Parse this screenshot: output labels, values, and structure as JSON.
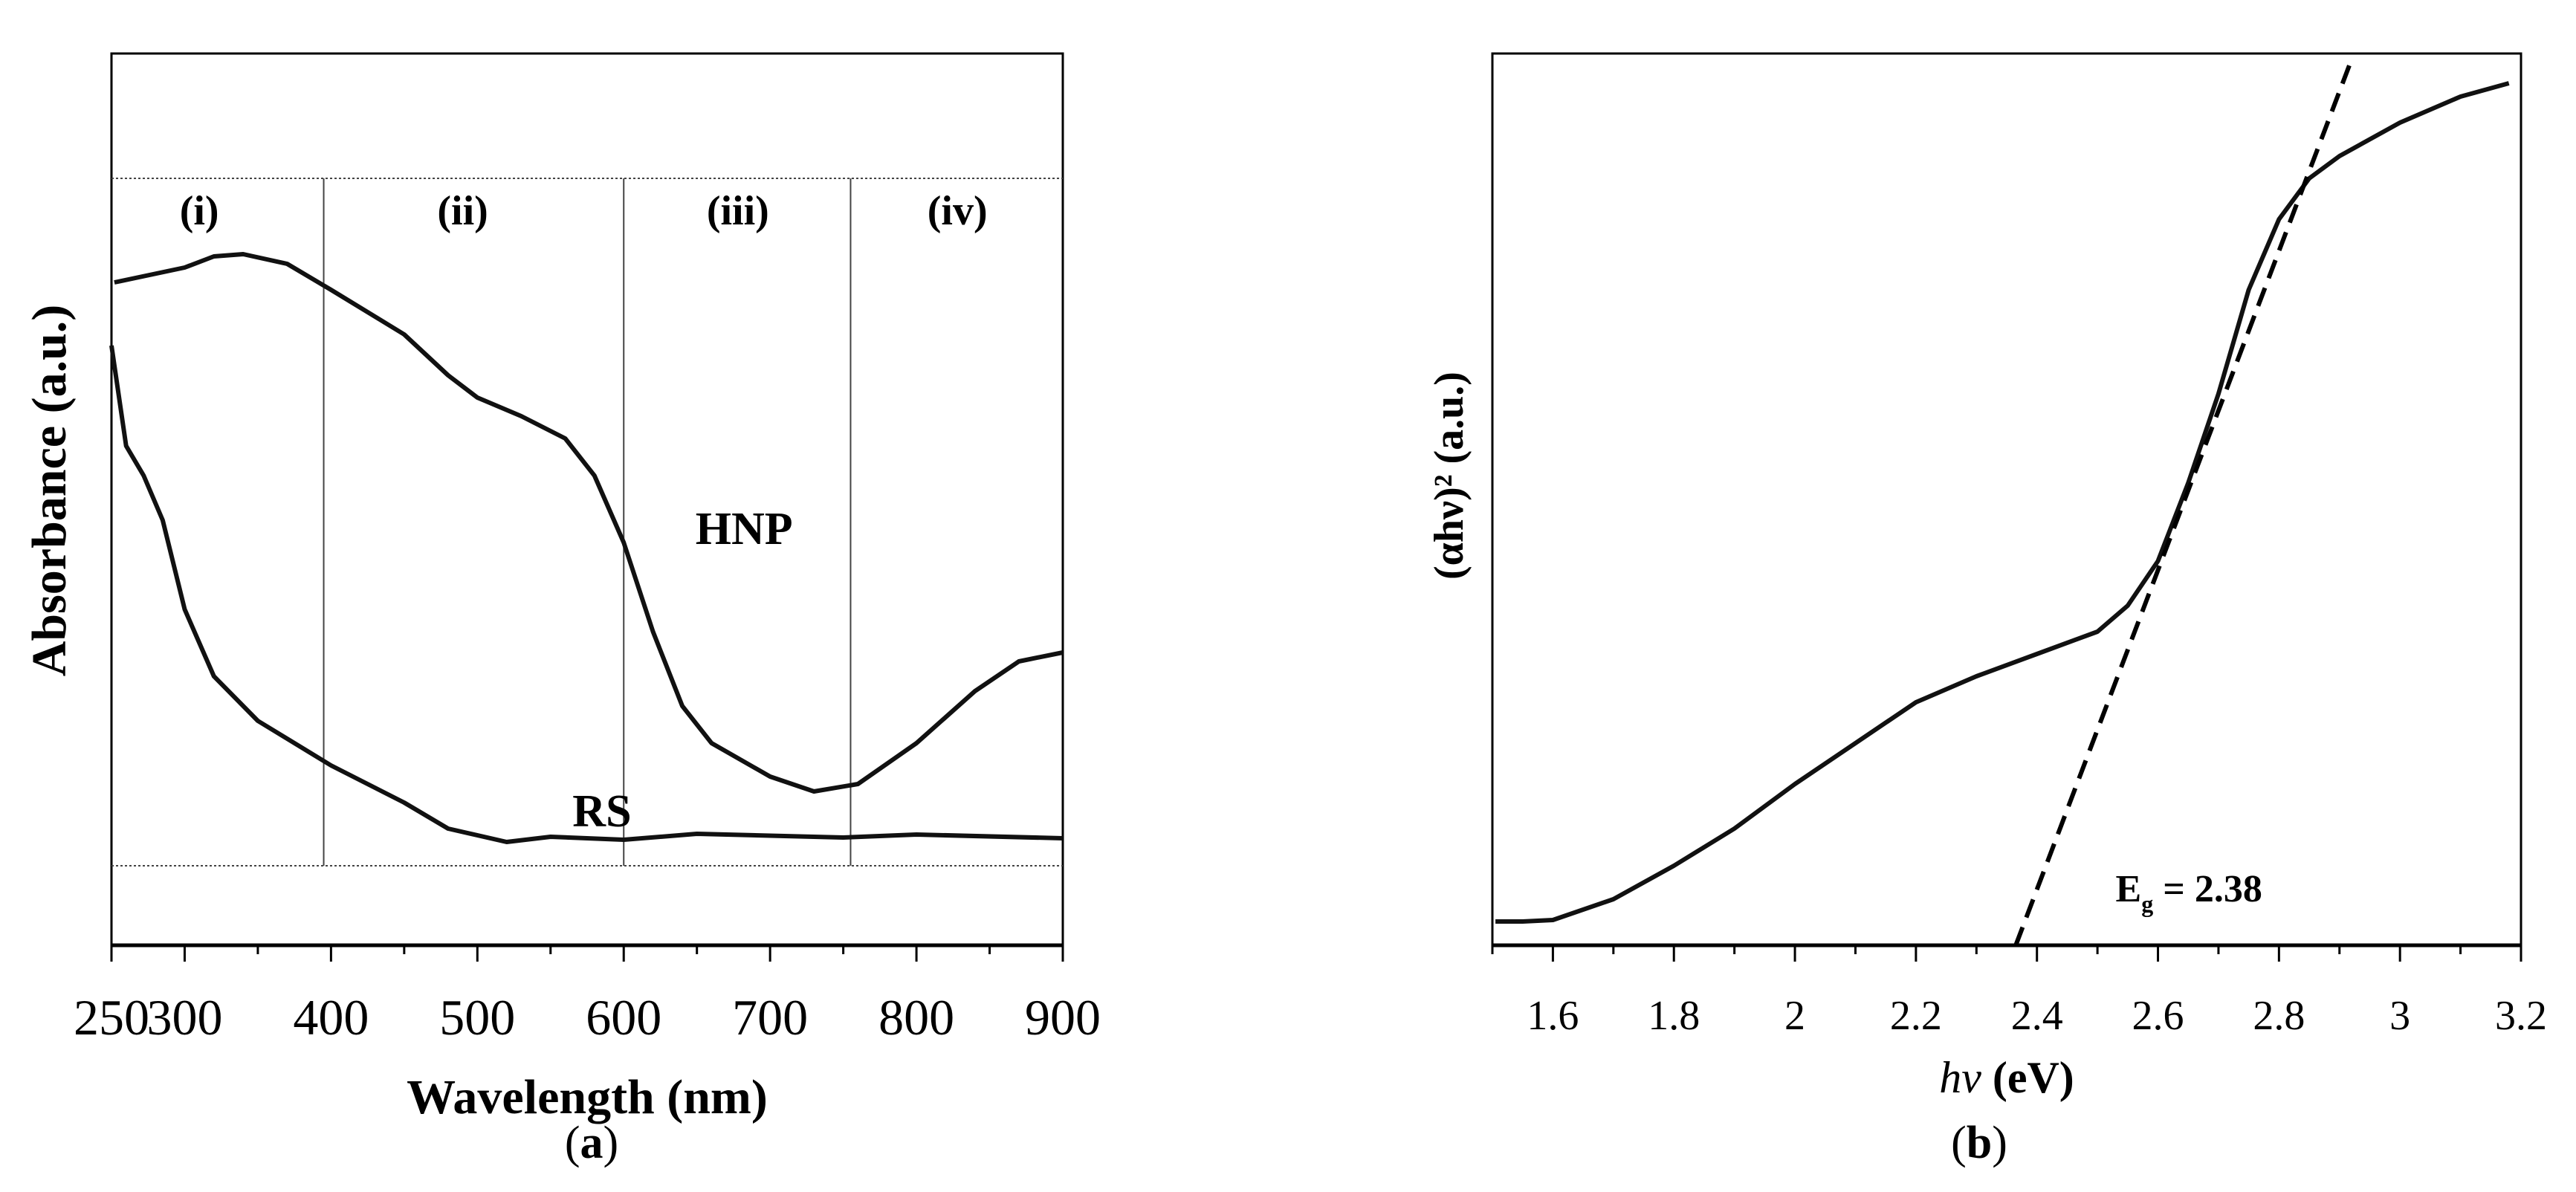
{
  "chart_data": [
    {
      "panel_label": "a",
      "type": "line",
      "xlabel": "Wavelength (nm)",
      "ylabel": "Absorbance (a.u.)",
      "xlim": [
        250,
        900
      ],
      "ylim": [
        0,
        1.2
      ],
      "xticks": [
        250,
        300,
        400,
        500,
        600,
        700,
        800,
        900
      ],
      "xtick_labels": [
        "250",
        "300",
        "400",
        "500",
        "600",
        "700",
        "800",
        "900"
      ],
      "minor_xticks": [
        350,
        450,
        550,
        650,
        750,
        850
      ],
      "grid": false,
      "region_boundaries_x": [
        395,
        600,
        755
      ],
      "region_band_y": [
        0.107,
        1.032
      ],
      "regions": [
        {
          "label": "(i)",
          "x": 310,
          "y": 0.99
        },
        {
          "label": "(ii)",
          "x": 490,
          "y": 0.99
        },
        {
          "label": "(iii)",
          "x": 678,
          "y": 0.99
        },
        {
          "label": "(iv)",
          "x": 828,
          "y": 0.99
        }
      ],
      "series": [
        {
          "name": "HNP",
          "label_pos": {
            "x": 649,
            "y": 0.56
          },
          "x": [
            252,
            300,
            320,
            340,
            370,
            400,
            450,
            480,
            500,
            530,
            560,
            580,
            600,
            620,
            640,
            660,
            700,
            730,
            760,
            800,
            840,
            870,
            900
          ],
          "y": [
            0.892,
            0.912,
            0.927,
            0.93,
            0.917,
            0.882,
            0.822,
            0.767,
            0.737,
            0.712,
            0.682,
            0.632,
            0.542,
            0.422,
            0.322,
            0.272,
            0.227,
            0.207,
            0.217,
            0.272,
            0.342,
            0.382,
            0.394
          ]
        },
        {
          "name": "RS",
          "label_pos": {
            "x": 565,
            "y": 0.18
          },
          "x": [
            250,
            260,
            272,
            285,
            300,
            320,
            350,
            400,
            450,
            480,
            520,
            550,
            600,
            650,
            750,
            800,
            900
          ],
          "y": [
            0.807,
            0.672,
            0.632,
            0.572,
            0.452,
            0.362,
            0.302,
            0.242,
            0.192,
            0.157,
            0.139,
            0.146,
            0.142,
            0.15,
            0.145,
            0.149,
            0.144
          ]
        }
      ]
    },
    {
      "panel_label": "b",
      "type": "line",
      "xlabel": "hν (eV)",
      "ylabel": "(αhν)² (a.u.)",
      "xlim": [
        1.5,
        3.2
      ],
      "ylim": [
        0,
        1.2
      ],
      "xticks": [
        1.6,
        1.8,
        2.0,
        2.2,
        2.4,
        2.6,
        2.8,
        3.0,
        3.2
      ],
      "xtick_labels": [
        "1.6",
        "1.8",
        "2",
        "2.2",
        "2.4",
        "2.6",
        "2.8",
        "3",
        "3.2"
      ],
      "minor_xticks": [
        1.5,
        1.7,
        1.9,
        2.1,
        2.3,
        2.5,
        2.7,
        2.9,
        3.1
      ],
      "grid": false,
      "series": [
        {
          "x": [
            1.505,
            1.55,
            1.6,
            1.7,
            1.8,
            1.9,
            2.0,
            2.1,
            2.2,
            2.3,
            2.4,
            2.5,
            2.55,
            2.6,
            2.65,
            2.7,
            2.75,
            2.8,
            2.85,
            2.9,
            3.0,
            3.1,
            3.18
          ],
          "y": [
            0.032,
            0.032,
            0.034,
            0.062,
            0.107,
            0.157,
            0.217,
            0.272,
            0.327,
            0.362,
            0.392,
            0.422,
            0.457,
            0.517,
            0.622,
            0.742,
            0.882,
            0.977,
            1.032,
            1.062,
            1.107,
            1.142,
            1.16
          ]
        }
      ],
      "fit_line": {
        "style": "dashed",
        "x": [
          2.365,
          2.92
        ],
        "y": [
          0.0,
          1.192
        ]
      },
      "annotation": {
        "text_main": "E",
        "text_sub": "g",
        "text_value": " = 2.38",
        "x": 2.53,
        "y": 0.077
      }
    }
  ]
}
